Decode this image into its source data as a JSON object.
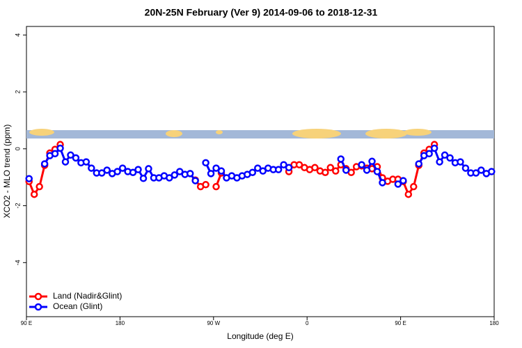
{
  "chart_data": {
    "type": "line",
    "title": "20N-25N February (Ver 9)   2014-09-06 to 2018-12-31",
    "xlabel": "Longitude (deg E)",
    "ylabel": "XCO2 - MLO trend (ppm)",
    "xlim": [
      90,
      540
    ],
    "ylim": [
      -5.9,
      4.3
    ],
    "xticks": [
      {
        "value": 90,
        "label": "90 E"
      },
      180,
      {
        "value": 270,
        "label": "90 W"
      },
      {
        "value": 360,
        "label": "0"
      },
      {
        "value": 450,
        "label": "90 E"
      },
      {
        "value": 540,
        "label": "180"
      }
    ],
    "yticks": [
      -4,
      -2,
      0,
      2,
      4
    ],
    "legend": "bottom-left",
    "x": [
      92.5,
      97.5,
      102.5,
      107.5,
      112.5,
      117.5,
      122.5,
      127.5,
      132.5,
      137.5,
      142.5,
      147.5,
      152.5,
      157.5,
      162.5,
      167.5,
      172.5,
      177.5,
      182.5,
      187.5,
      192.5,
      197.5,
      202.5,
      207.5,
      212.5,
      217.5,
      222.5,
      227.5,
      232.5,
      237.5,
      242.5,
      247.5,
      252.5,
      257.5,
      262.5,
      267.5,
      272.5,
      277.5,
      282.5,
      287.5,
      292.5,
      297.5,
      302.5,
      307.5,
      312.5,
      317.5,
      322.5,
      327.5,
      332.5,
      337.5,
      342.5,
      347.5,
      352.5,
      357.5,
      362.5,
      367.5,
      372.5,
      377.5,
      382.5,
      387.5,
      392.5,
      397.5,
      402.5,
      407.5,
      412.5,
      417.5,
      422.5,
      427.5,
      432.5,
      437.5,
      442.5,
      447.5,
      452.5,
      457.5,
      462.5,
      467.5,
      472.5,
      477.5,
      482.5,
      487.5,
      492.5,
      497.5,
      502.5,
      507.5,
      512.5,
      517.5,
      522.5,
      527.5,
      532.5,
      537.5
    ],
    "series": [
      {
        "name": "Land (Nadir&Glint)",
        "color": "#ff0000",
        "values": [
          -1.15,
          -1.6,
          -1.33,
          -0.58,
          -0.15,
          -0.02,
          0.15,
          null,
          null,
          null,
          null,
          null,
          null,
          null,
          null,
          null,
          null,
          null,
          null,
          null,
          null,
          null,
          null,
          null,
          null,
          null,
          null,
          null,
          null,
          null,
          null,
          null,
          -1.1,
          -1.33,
          -1.26,
          null,
          -1.33,
          -0.85,
          null,
          null,
          null,
          null,
          null,
          null,
          null,
          null,
          null,
          null,
          null,
          null,
          -0.8,
          -0.56,
          -0.56,
          -0.66,
          -0.73,
          -0.66,
          -0.78,
          -0.83,
          -0.66,
          -0.78,
          -0.56,
          -0.7,
          -0.83,
          -0.63,
          -0.6,
          -0.68,
          -0.7,
          -0.63,
          -1.02,
          -1.14,
          -1.07,
          -1.07,
          -1.15,
          -1.6,
          -1.33,
          -0.58,
          -0.15,
          -0.02,
          0.15,
          null,
          null,
          null,
          null,
          null,
          null,
          null,
          null,
          null,
          null,
          null
        ]
      },
      {
        "name": "Ocean (Glint)",
        "color": "#0000ff",
        "values": [
          -1.05,
          null,
          null,
          -0.53,
          -0.24,
          -0.17,
          0.02,
          -0.46,
          -0.22,
          -0.32,
          -0.49,
          -0.46,
          -0.68,
          -0.85,
          -0.85,
          -0.75,
          -0.87,
          -0.8,
          -0.68,
          -0.8,
          -0.83,
          -0.73,
          -1.04,
          -0.7,
          -1.02,
          -1.02,
          -0.95,
          -1.02,
          -0.92,
          -0.8,
          -0.9,
          -0.87,
          -1.12,
          null,
          -0.49,
          -0.87,
          -0.68,
          -0.78,
          -1.02,
          -0.95,
          -1.02,
          -0.95,
          -0.9,
          -0.83,
          -0.68,
          -0.78,
          -0.68,
          -0.73,
          -0.73,
          -0.56,
          -0.66,
          null,
          null,
          null,
          null,
          null,
          null,
          null,
          null,
          null,
          -0.36,
          -0.75,
          null,
          null,
          -0.56,
          -0.75,
          -0.44,
          -0.8,
          -1.19,
          null,
          null,
          -1.24,
          -1.12,
          null,
          null,
          -0.53,
          -0.24,
          -0.17,
          0.02,
          -0.46,
          -0.22,
          -0.32,
          -0.49,
          -0.46,
          -0.68,
          -0.85,
          -0.85,
          -0.75,
          -0.87,
          -0.8
        ]
      }
    ]
  }
}
